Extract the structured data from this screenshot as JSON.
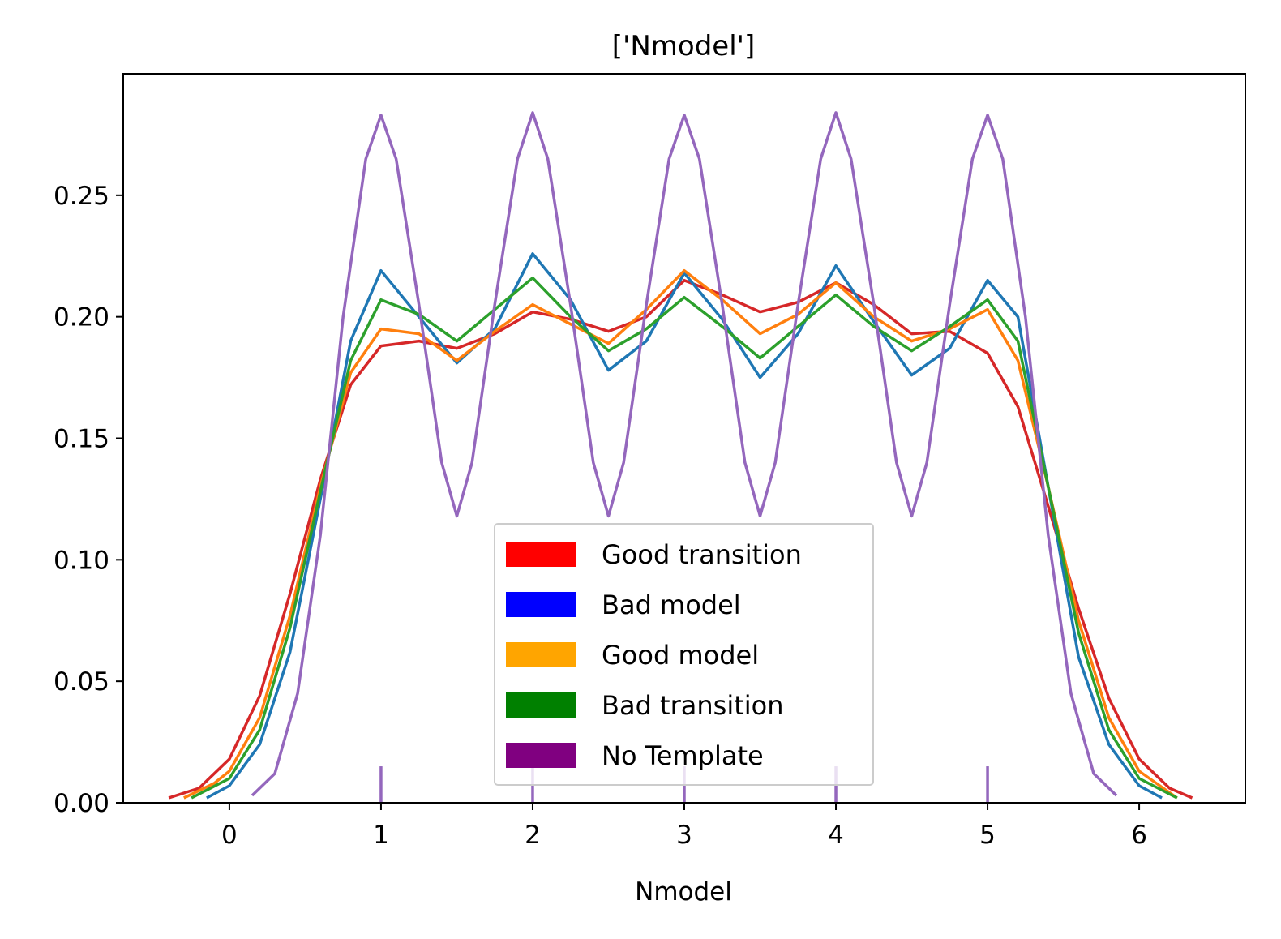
{
  "chart_data": {
    "type": "line",
    "title": "['Nmodel']",
    "xlabel": "Nmodel",
    "ylabel": "",
    "xlim": [
      -0.7,
      6.7
    ],
    "ylim": [
      0,
      0.3
    ],
    "x_ticks": [
      0,
      1,
      2,
      3,
      4,
      5,
      6
    ],
    "x_tick_labels": [
      "0",
      "1",
      "2",
      "3",
      "4",
      "5",
      "6"
    ],
    "y_ticks": [
      0,
      0.05,
      0.1,
      0.15,
      0.2,
      0.25
    ],
    "y_tick_labels": [
      "0.00",
      "0.05",
      "0.10",
      "0.15",
      "0.20",
      "0.25"
    ],
    "grid": false,
    "legend_position": "lower-center",
    "legend": [
      {
        "label": "Good transition",
        "color": "#ff0000"
      },
      {
        "label": "Bad model",
        "color": "#0000ff"
      },
      {
        "label": "Good model",
        "color": "#ffa500"
      },
      {
        "label": "Bad transition",
        "color": "#008000"
      },
      {
        "label": "No Template",
        "color": "#800080"
      }
    ],
    "rug": {
      "color": "#9467bd",
      "x": [
        1,
        2,
        3,
        4,
        5
      ],
      "height": 0.015
    },
    "series": [
      {
        "color": "#d62728",
        "x": [
          -0.4,
          -0.2,
          0.0,
          0.2,
          0.4,
          0.6,
          0.8,
          1.0,
          1.25,
          1.5,
          1.75,
          2.0,
          2.25,
          2.5,
          2.75,
          3.0,
          3.25,
          3.5,
          3.75,
          4.0,
          4.25,
          4.5,
          4.75,
          5.0,
          5.2,
          5.4,
          5.6,
          5.8,
          6.0,
          6.2,
          6.35
        ],
        "y": [
          0.002,
          0.006,
          0.018,
          0.044,
          0.086,
          0.133,
          0.172,
          0.188,
          0.19,
          0.187,
          0.193,
          0.202,
          0.199,
          0.194,
          0.2,
          0.215,
          0.209,
          0.202,
          0.206,
          0.214,
          0.205,
          0.193,
          0.194,
          0.185,
          0.163,
          0.122,
          0.08,
          0.043,
          0.018,
          0.006,
          0.002
        ]
      },
      {
        "color": "#1f77b4",
        "x": [
          -0.15,
          0.0,
          0.2,
          0.4,
          0.6,
          0.8,
          1.0,
          1.25,
          1.5,
          1.75,
          2.0,
          2.25,
          2.5,
          2.75,
          3.0,
          3.25,
          3.5,
          3.75,
          4.0,
          4.25,
          4.5,
          4.75,
          5.0,
          5.2,
          5.4,
          5.6,
          5.8,
          6.0,
          6.15
        ],
        "y": [
          0.002,
          0.007,
          0.024,
          0.062,
          0.125,
          0.19,
          0.219,
          0.2,
          0.181,
          0.195,
          0.226,
          0.207,
          0.178,
          0.19,
          0.218,
          0.199,
          0.175,
          0.193,
          0.221,
          0.198,
          0.176,
          0.187,
          0.215,
          0.2,
          0.13,
          0.06,
          0.024,
          0.007,
          0.002
        ]
      },
      {
        "color": "#ff7f0e",
        "x": [
          -0.3,
          -0.1,
          0.0,
          0.2,
          0.4,
          0.6,
          0.8,
          1.0,
          1.25,
          1.5,
          1.75,
          2.0,
          2.25,
          2.5,
          2.75,
          3.0,
          3.25,
          3.5,
          3.75,
          4.0,
          4.25,
          4.5,
          4.75,
          5.0,
          5.2,
          5.4,
          5.6,
          5.8,
          6.0,
          6.25
        ],
        "y": [
          0.002,
          0.008,
          0.013,
          0.035,
          0.077,
          0.13,
          0.177,
          0.195,
          0.193,
          0.182,
          0.194,
          0.205,
          0.197,
          0.189,
          0.203,
          0.219,
          0.207,
          0.193,
          0.201,
          0.214,
          0.2,
          0.19,
          0.195,
          0.203,
          0.182,
          0.13,
          0.075,
          0.035,
          0.013,
          0.002
        ]
      },
      {
        "color": "#2ca02c",
        "x": [
          -0.25,
          0.0,
          0.2,
          0.4,
          0.6,
          0.8,
          1.0,
          1.25,
          1.5,
          1.75,
          2.0,
          2.25,
          2.5,
          2.75,
          3.0,
          3.25,
          3.5,
          3.75,
          4.0,
          4.25,
          4.5,
          4.75,
          5.0,
          5.2,
          5.4,
          5.6,
          5.8,
          6.0,
          6.25
        ],
        "y": [
          0.002,
          0.01,
          0.03,
          0.072,
          0.128,
          0.182,
          0.207,
          0.201,
          0.19,
          0.203,
          0.216,
          0.2,
          0.186,
          0.195,
          0.208,
          0.196,
          0.183,
          0.196,
          0.209,
          0.196,
          0.186,
          0.196,
          0.207,
          0.19,
          0.13,
          0.07,
          0.03,
          0.01,
          0.002
        ]
      },
      {
        "color": "#9467bd",
        "x": [
          0.15,
          0.3,
          0.45,
          0.6,
          0.75,
          0.9,
          1.0,
          1.1,
          1.25,
          1.4,
          1.5,
          1.6,
          1.75,
          1.9,
          2.0,
          2.1,
          2.25,
          2.4,
          2.5,
          2.6,
          2.75,
          2.9,
          3.0,
          3.1,
          3.25,
          3.4,
          3.5,
          3.6,
          3.75,
          3.9,
          4.0,
          4.1,
          4.25,
          4.4,
          4.5,
          4.6,
          4.75,
          4.9,
          5.0,
          5.1,
          5.25,
          5.4,
          5.55,
          5.7,
          5.85
        ],
        "y": [
          0.003,
          0.012,
          0.045,
          0.11,
          0.2,
          0.265,
          0.283,
          0.265,
          0.205,
          0.14,
          0.118,
          0.14,
          0.205,
          0.265,
          0.284,
          0.265,
          0.205,
          0.14,
          0.118,
          0.14,
          0.205,
          0.265,
          0.283,
          0.265,
          0.205,
          0.14,
          0.118,
          0.14,
          0.205,
          0.265,
          0.284,
          0.265,
          0.205,
          0.14,
          0.118,
          0.14,
          0.205,
          0.265,
          0.283,
          0.265,
          0.2,
          0.11,
          0.045,
          0.012,
          0.003
        ]
      }
    ]
  }
}
